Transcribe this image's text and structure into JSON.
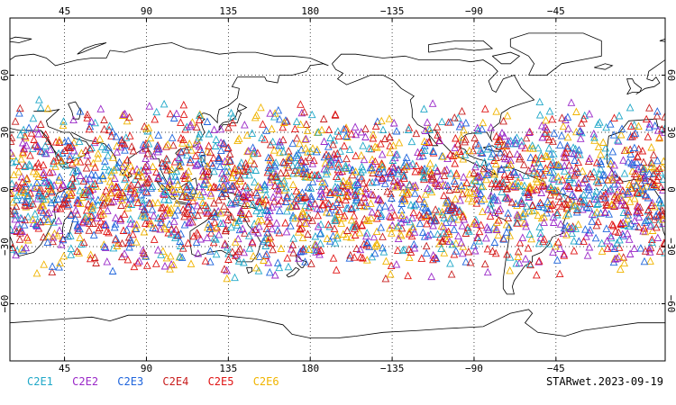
{
  "map": {
    "projection": "equirectangular",
    "lon_range": [
      15,
      375
    ],
    "lat_range": [
      -90,
      90
    ],
    "top_ticks": [
      "45",
      "90",
      "135",
      "180",
      "−135",
      "−90",
      "−45"
    ],
    "bottom_ticks": [
      "45",
      "90",
      "135",
      "180",
      "−135",
      "−90",
      "−45"
    ],
    "lat_ticks": [
      "60",
      "30",
      "0",
      "−30",
      "−60"
    ],
    "tick_lons": [
      45,
      90,
      135,
      180,
      225,
      270,
      315
    ],
    "tick_lats": [
      60,
      30,
      0,
      -30,
      -60
    ],
    "grid": true,
    "coastline_color": "#000000",
    "marker_shape": "open-triangle",
    "marker_lat_band": [
      -48,
      48
    ]
  },
  "legend": [
    {
      "label": "C2E1",
      "color": "#20a8c8"
    },
    {
      "label": "C2E2",
      "color": "#9a28c8"
    },
    {
      "label": "C2E3",
      "color": "#1e64dc"
    },
    {
      "label": "C2E4",
      "color": "#c81e1e"
    },
    {
      "label": "C2E5",
      "color": "#e01414"
    },
    {
      "label": "C2E6",
      "color": "#f0b400"
    }
  ],
  "stamp": "STARwet.2023-09-19"
}
